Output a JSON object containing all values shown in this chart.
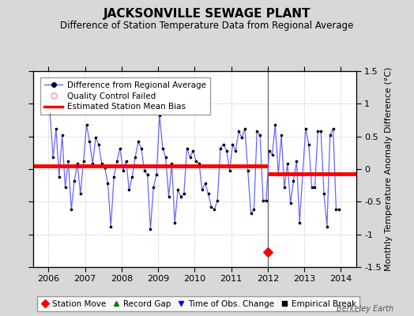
{
  "title": "JACKSONVILLE SEWAGE PLANT",
  "subtitle": "Difference of Station Temperature Data from Regional Average",
  "ylabel": "Monthly Temperature Anomaly Difference (°C)",
  "ylim": [
    -1.5,
    1.5
  ],
  "xlim": [
    2005.58,
    2014.42
  ],
  "xticks": [
    2006,
    2007,
    2008,
    2009,
    2010,
    2011,
    2012,
    2013,
    2014
  ],
  "yticks": [
    -1.5,
    -1.0,
    -0.5,
    0.0,
    0.5,
    1.0,
    1.5
  ],
  "ytick_labels": [
    "-1.5",
    "-1",
    "-0.5",
    "0",
    "0.5",
    "1",
    "1.5"
  ],
  "figure_bg": "#d8d8d8",
  "plot_bg": "#ffffff",
  "vertical_line_x": 2012.0,
  "bias_line1_x": [
    2005.58,
    2012.0
  ],
  "bias_line1_y": [
    0.05,
    0.05
  ],
  "bias_line2_x": [
    2012.0,
    2014.42
  ],
  "bias_line2_y": [
    -0.07,
    -0.07
  ],
  "station_move_x": 2012.0,
  "station_move_y": -1.27,
  "monthly_data": [
    [
      2006.042,
      0.85
    ],
    [
      2006.125,
      0.18
    ],
    [
      2006.208,
      0.62
    ],
    [
      2006.292,
      -0.12
    ],
    [
      2006.375,
      0.52
    ],
    [
      2006.458,
      -0.28
    ],
    [
      2006.542,
      0.12
    ],
    [
      2006.625,
      -0.62
    ],
    [
      2006.708,
      -0.18
    ],
    [
      2006.792,
      0.08
    ],
    [
      2006.875,
      -0.38
    ],
    [
      2006.958,
      0.12
    ],
    [
      2007.042,
      0.68
    ],
    [
      2007.125,
      0.42
    ],
    [
      2007.208,
      0.08
    ],
    [
      2007.292,
      0.48
    ],
    [
      2007.375,
      0.38
    ],
    [
      2007.458,
      0.08
    ],
    [
      2007.542,
      0.02
    ],
    [
      2007.625,
      -0.22
    ],
    [
      2007.708,
      -0.88
    ],
    [
      2007.792,
      -0.12
    ],
    [
      2007.875,
      0.12
    ],
    [
      2007.958,
      0.32
    ],
    [
      2008.042,
      -0.02
    ],
    [
      2008.125,
      0.12
    ],
    [
      2008.208,
      -0.32
    ],
    [
      2008.292,
      -0.12
    ],
    [
      2008.375,
      0.18
    ],
    [
      2008.458,
      0.42
    ],
    [
      2008.542,
      0.32
    ],
    [
      2008.625,
      -0.02
    ],
    [
      2008.708,
      -0.08
    ],
    [
      2008.792,
      -0.92
    ],
    [
      2008.875,
      -0.28
    ],
    [
      2008.958,
      -0.08
    ],
    [
      2009.042,
      0.82
    ],
    [
      2009.125,
      0.32
    ],
    [
      2009.208,
      0.18
    ],
    [
      2009.292,
      -0.42
    ],
    [
      2009.375,
      0.08
    ],
    [
      2009.458,
      -0.82
    ],
    [
      2009.542,
      -0.32
    ],
    [
      2009.625,
      -0.42
    ],
    [
      2009.708,
      -0.38
    ],
    [
      2009.792,
      0.32
    ],
    [
      2009.875,
      0.18
    ],
    [
      2009.958,
      0.28
    ],
    [
      2010.042,
      0.12
    ],
    [
      2010.125,
      0.08
    ],
    [
      2010.208,
      -0.32
    ],
    [
      2010.292,
      -0.22
    ],
    [
      2010.375,
      -0.38
    ],
    [
      2010.458,
      -0.58
    ],
    [
      2010.542,
      -0.62
    ],
    [
      2010.625,
      -0.48
    ],
    [
      2010.708,
      0.32
    ],
    [
      2010.792,
      0.38
    ],
    [
      2010.875,
      0.28
    ],
    [
      2010.958,
      -0.02
    ],
    [
      2011.042,
      0.38
    ],
    [
      2011.125,
      0.28
    ],
    [
      2011.208,
      0.58
    ],
    [
      2011.292,
      0.48
    ],
    [
      2011.375,
      0.62
    ],
    [
      2011.458,
      -0.02
    ],
    [
      2011.542,
      -0.68
    ],
    [
      2011.625,
      -0.62
    ],
    [
      2011.708,
      0.58
    ],
    [
      2011.792,
      0.52
    ],
    [
      2011.875,
      -0.48
    ],
    [
      2011.958,
      -0.48
    ],
    [
      2012.042,
      0.28
    ],
    [
      2012.125,
      0.22
    ],
    [
      2012.208,
      0.68
    ],
    [
      2012.292,
      -0.08
    ],
    [
      2012.375,
      0.52
    ],
    [
      2012.458,
      -0.28
    ],
    [
      2012.542,
      0.08
    ],
    [
      2012.625,
      -0.52
    ],
    [
      2012.708,
      -0.18
    ],
    [
      2012.792,
      0.12
    ],
    [
      2012.875,
      -0.82
    ],
    [
      2012.958,
      -0.08
    ],
    [
      2013.042,
      0.62
    ],
    [
      2013.125,
      0.38
    ],
    [
      2013.208,
      -0.28
    ],
    [
      2013.292,
      -0.28
    ],
    [
      2013.375,
      0.58
    ],
    [
      2013.458,
      0.58
    ],
    [
      2013.542,
      -0.38
    ],
    [
      2013.625,
      -0.88
    ],
    [
      2013.708,
      0.52
    ],
    [
      2013.792,
      0.62
    ],
    [
      2013.875,
      -0.62
    ],
    [
      2013.958,
      -0.62
    ]
  ],
  "line_color": "#6666ff",
  "dot_color": "#000000",
  "bias_color": "#ff0000",
  "vline_color": "#666666",
  "grid_color": "#cccccc",
  "title_fontsize": 11,
  "subtitle_fontsize": 8.5,
  "tick_fontsize": 8,
  "legend_fontsize": 7.5,
  "ylabel_fontsize": 8,
  "watermark": "Berkeley Earth",
  "watermark_fontsize": 7
}
